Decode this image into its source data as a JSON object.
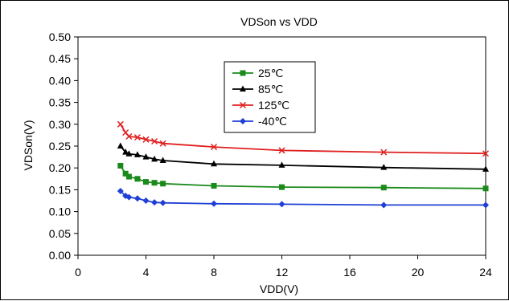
{
  "chart_data": {
    "type": "line",
    "title": "VDSon vs VDD",
    "xlabel": "VDD(V)",
    "ylabel": "VDSon(V)",
    "xlim": [
      0,
      24
    ],
    "ylim": [
      0,
      0.5
    ],
    "x_ticks": [
      "0",
      "4",
      "8",
      "12",
      "16",
      "20",
      "24"
    ],
    "y_ticks": [
      "0.00",
      "0.05",
      "0.10",
      "0.15",
      "0.20",
      "0.25",
      "0.30",
      "0.35",
      "0.40",
      "0.45",
      "0.50"
    ],
    "grid": true,
    "grid_style": "dashed",
    "legend_position": "top-center",
    "series": [
      {
        "name": "25℃",
        "color": "#1a8a1a",
        "marker": "square",
        "x": [
          2.5,
          2.8,
          3.0,
          3.5,
          4.0,
          4.5,
          5.0,
          8.0,
          12.0,
          18.0,
          24.0
        ],
        "y": [
          0.205,
          0.187,
          0.18,
          0.175,
          0.168,
          0.166,
          0.164,
          0.159,
          0.156,
          0.155,
          0.153
        ]
      },
      {
        "name": "85℃",
        "color": "#000000",
        "marker": "triangle",
        "x": [
          2.5,
          2.8,
          3.0,
          3.5,
          4.0,
          4.5,
          5.0,
          8.0,
          12.0,
          18.0,
          24.0
        ],
        "y": [
          0.25,
          0.236,
          0.232,
          0.23,
          0.225,
          0.22,
          0.217,
          0.209,
          0.206,
          0.201,
          0.197
        ]
      },
      {
        "name": "125℃",
        "color": "#e02020",
        "marker": "x",
        "x": [
          2.5,
          2.8,
          3.0,
          3.5,
          4.0,
          4.5,
          5.0,
          8.0,
          12.0,
          18.0,
          24.0
        ],
        "y": [
          0.3,
          0.281,
          0.272,
          0.27,
          0.265,
          0.261,
          0.256,
          0.248,
          0.24,
          0.236,
          0.233
        ]
      },
      {
        "name": "-40℃",
        "color": "#1f3fd6",
        "marker": "diamond",
        "x": [
          2.5,
          2.8,
          3.0,
          3.5,
          4.0,
          4.5,
          5.0,
          8.0,
          12.0,
          18.0,
          24.0
        ],
        "y": [
          0.147,
          0.136,
          0.133,
          0.13,
          0.125,
          0.121,
          0.12,
          0.118,
          0.117,
          0.115,
          0.115
        ]
      }
    ]
  }
}
